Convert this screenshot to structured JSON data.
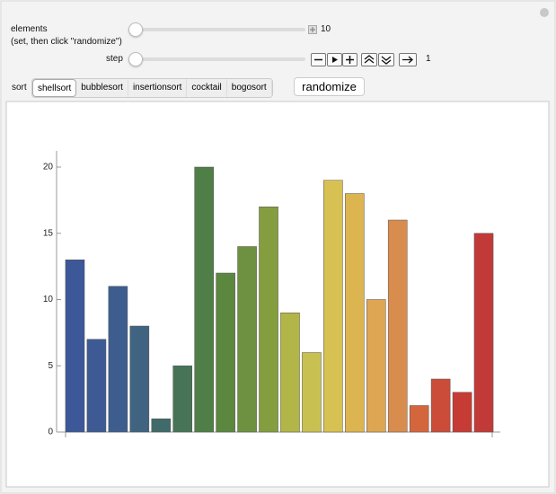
{
  "controls": {
    "elements_label": "elements",
    "elements_hint": "(set, then click \"randomize\")",
    "elements_value": "10",
    "step_label": "step",
    "step_value": "1",
    "sort_label": "sort",
    "sort_options": [
      "shellsort",
      "bubblesort",
      "insertionsort",
      "cocktail",
      "bogosort"
    ],
    "randomize": "randomize"
  },
  "chart_data": {
    "type": "bar",
    "categories": [
      null,
      null,
      null,
      null,
      null,
      null,
      null,
      null,
      null,
      null,
      null,
      null,
      null,
      null,
      null,
      null,
      null,
      null,
      null,
      null
    ],
    "values": [
      13,
      7,
      11,
      8,
      1,
      5,
      20,
      12,
      14,
      17,
      9,
      6,
      19,
      18,
      10,
      16,
      2,
      4,
      3,
      15
    ],
    "colors": [
      "#3c5898",
      "#3d5a94",
      "#3e5d8f",
      "#3f6380",
      "#416b6a",
      "#477457",
      "#4f7e46",
      "#5c873f",
      "#6d9140",
      "#849e3f",
      "#b2b548",
      "#c8c152",
      "#d7c152",
      "#ddb550",
      "#dea553",
      "#d88c4d",
      "#d4663d",
      "#cb4c39",
      "#c63c35",
      "#c23a37"
    ],
    "ylim": [
      0,
      21
    ],
    "yticks": [
      0,
      5,
      10,
      15,
      20
    ],
    "grid": false
  }
}
